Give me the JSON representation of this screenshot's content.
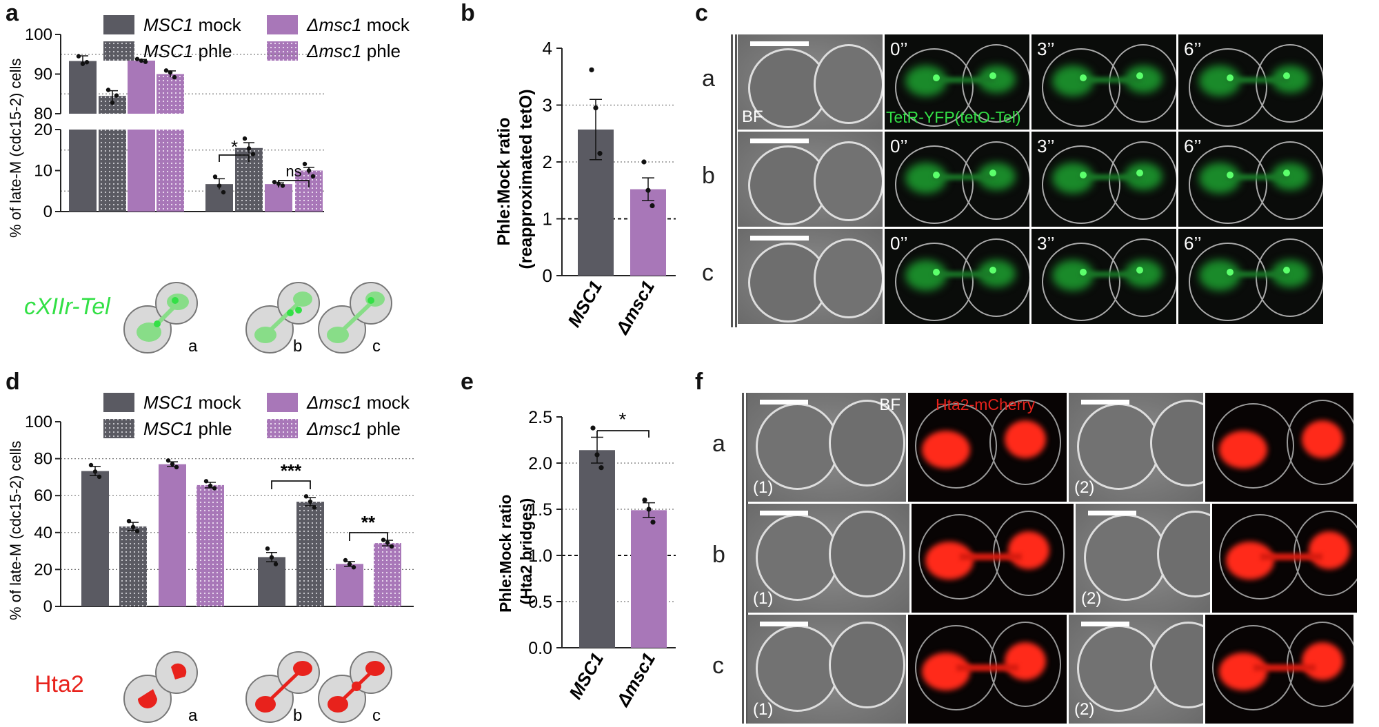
{
  "panels": {
    "a": "a",
    "b": "b",
    "c": "c",
    "d": "d",
    "e": "e",
    "f": "f"
  },
  "colors": {
    "wt": "#5a5a62",
    "mut": "#a877b8",
    "grid": "#777",
    "green": "#33e046",
    "red": "#e8221c",
    "schematic_fill": "#d9d9d9"
  },
  "panel_a": {
    "ylabel": "% of late-M (cdc15-2) cells",
    "legend": [
      {
        "gene": "MSC1",
        "cond": "mock"
      },
      {
        "gene": "MSC1",
        "cond": "phle"
      },
      {
        "gene": "Δmsc1",
        "cond": "mock"
      },
      {
        "gene": "Δmsc1",
        "cond": "phle"
      }
    ],
    "yticks_upper": [
      "80",
      "90",
      "100"
    ],
    "yticks_lower": [
      "0",
      "10",
      "20"
    ],
    "sig": [
      "*",
      "ns"
    ],
    "schematic_label": "cXIIr-Tel",
    "schematic_cells": [
      "a",
      "b",
      "c"
    ]
  },
  "panel_b": {
    "ylabel_lines": [
      "Phle:Mock ratio",
      "(reapproximated tetO)"
    ],
    "yticks": [
      "0",
      "1",
      "2",
      "3",
      "4"
    ],
    "categories": [
      "MSC1",
      "Δmsc1"
    ]
  },
  "panel_c": {
    "rows": [
      "a",
      "b",
      "c"
    ],
    "times": [
      "0’’",
      "3’’",
      "6’’"
    ],
    "bf_label": "BF",
    "fluor_label": "TetR-YFP(tetO-Tel)"
  },
  "panel_d": {
    "ylabel": "% of late-M (cdc15-2) cells",
    "legend": [
      {
        "gene": "MSC1",
        "cond": "mock"
      },
      {
        "gene": "MSC1",
        "cond": "phle"
      },
      {
        "gene": "Δmsc1",
        "cond": "mock"
      },
      {
        "gene": "Δmsc1",
        "cond": "phle"
      }
    ],
    "yticks": [
      "0",
      "20",
      "40",
      "60",
      "80",
      "100"
    ],
    "sig": [
      "***",
      "**"
    ],
    "schematic_label": "Hta2",
    "schematic_cells": [
      "a",
      "b",
      "c"
    ]
  },
  "panel_e": {
    "ylabel_lines": [
      "Phle:Mock ratio",
      "(Hta2 bridges)"
    ],
    "yticks": [
      "0.0",
      "0.5",
      "1.0",
      "1.5",
      "2.0",
      "2.5"
    ],
    "categories": [
      "MSC1",
      "Δmsc1"
    ],
    "sig": "*"
  },
  "panel_f": {
    "rows": [
      "a",
      "b",
      "c"
    ],
    "bf_label": "BF",
    "fluor_label": "Hta2-mCherry",
    "cells": [
      "(1)",
      "(2)"
    ]
  },
  "chart_data": [
    {
      "type": "bar",
      "panel": "a",
      "ylabel": "% of late-M (cdc15-2) cells",
      "broken_axis": {
        "lower": [
          0,
          20
        ],
        "upper": [
          80,
          100
        ]
      },
      "groups": [
        "a",
        "b + c"
      ],
      "series": [
        {
          "name": "MSC1 mock",
          "values": [
            93.3,
            6.7
          ],
          "err": [
            1.3,
            1.3
          ],
          "points": [
            [
              94.5,
              92.6,
              93.0
            ],
            [
              8.5,
              6.3,
              4.7
            ]
          ]
        },
        {
          "name": "MSC1 phle",
          "values": [
            84.5,
            15.5
          ],
          "err": [
            1.3,
            1.3
          ],
          "points": [
            [
              86.0,
              82.8,
              84.6
            ],
            [
              17.8,
              15.4,
              14.0
            ]
          ]
        },
        {
          "name": "Δmsc1 mock",
          "values": [
            93.4,
            6.7
          ],
          "err": [
            0.3,
            0.3
          ],
          "points": [
            [
              93.8,
              93.4,
              93.1
            ],
            [
              7.2,
              6.8,
              6.3
            ]
          ]
        },
        {
          "name": "Δmsc1 phle",
          "values": [
            90.0,
            10.0
          ],
          "err": [
            0.8,
            0.8
          ],
          "points": [
            [
              90.9,
              90.4,
              89.2
            ],
            [
              11.6,
              10.0,
              8.6
            ]
          ]
        }
      ]
    },
    {
      "type": "bar",
      "panel": "b",
      "ylabel": "Phle:Mock ratio (reapproximated tetO)",
      "ylim": [
        0,
        4
      ],
      "categories": [
        "MSC1",
        "Δmsc1"
      ],
      "values": [
        2.57,
        1.52
      ],
      "err": [
        0.53,
        0.2
      ],
      "points": [
        [
          3.62,
          2.95,
          2.15
        ],
        [
          2.0,
          1.5,
          1.23
        ]
      ],
      "reference_line": 1
    },
    {
      "type": "bar",
      "panel": "d",
      "ylabel": "% of late-M (cdc15-2) cells",
      "ylim": [
        0,
        100
      ],
      "groups": [
        "a",
        "b + c"
      ],
      "series": [
        {
          "name": "MSC1 mock",
          "values": [
            73.3,
            26.7
          ],
          "err": [
            2.5,
            2.5
          ],
          "points": [
            [
              76.5,
              73.0,
              70.2
            ],
            [
              31.3,
              26.6,
              22.9
            ]
          ]
        },
        {
          "name": "MSC1 phle",
          "values": [
            43.3,
            56.7
          ],
          "err": [
            2.2,
            2.2
          ],
          "points": [
            [
              46.2,
              43.0,
              40.7
            ],
            [
              59.6,
              56.7,
              53.6
            ]
          ]
        },
        {
          "name": "Δmsc1 mock",
          "values": [
            77.0,
            23.0
          ],
          "err": [
            1.3,
            1.3
          ],
          "points": [
            [
              79.0,
              77.1,
              75.4
            ],
            [
              25.0,
              22.9,
              21.2
            ]
          ]
        },
        {
          "name": "Δmsc1 phle",
          "values": [
            65.7,
            34.3
          ],
          "err": [
            1.5,
            1.5
          ],
          "points": [
            [
              67.8,
              65.3,
              64.0
            ],
            [
              36.0,
              34.5,
              32.5
            ]
          ]
        }
      ]
    },
    {
      "type": "bar",
      "panel": "e",
      "ylabel": "Phle:Mock ratio (Hta2 bridges)",
      "ylim": [
        0,
        2.5
      ],
      "categories": [
        "MSC1",
        "Δmsc1"
      ],
      "values": [
        2.14,
        1.49
      ],
      "err": [
        0.14,
        0.08
      ],
      "points": [
        [
          2.38,
          2.09,
          1.95
        ],
        [
          1.6,
          1.5,
          1.36
        ]
      ],
      "reference_line": 1
    }
  ]
}
